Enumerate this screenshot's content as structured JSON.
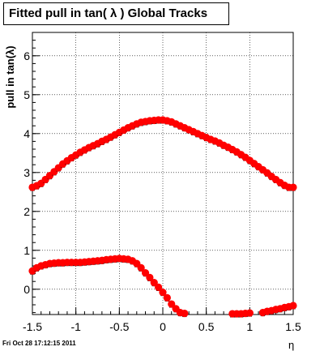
{
  "chart_data": {
    "type": "scatter",
    "title": "Fitted pull in tan( λ )  Global Tracks",
    "xlabel": "η",
    "ylabel": "pull in tan(λ)",
    "xlim": [
      -1.5,
      1.5
    ],
    "ylim": [
      -0.65,
      6.6
    ],
    "xticks": [
      -1.5,
      -1,
      -0.5,
      0,
      0.5,
      1,
      1.5
    ],
    "yticks": [
      0,
      1,
      2,
      3,
      4,
      5,
      6
    ],
    "grid": true,
    "marker_color": "#ff0000",
    "error_color": "#000000",
    "series": [
      {
        "x": [
          -1.5,
          -1.45,
          -1.4,
          -1.35,
          -1.3,
          -1.25,
          -1.2,
          -1.15,
          -1.1,
          -1.05,
          -1.0,
          -0.95,
          -0.9,
          -0.85,
          -0.8,
          -0.75,
          -0.7,
          -0.65,
          -0.6,
          -0.55,
          -0.5,
          -0.45,
          -0.4,
          -0.35,
          -0.3,
          -0.25,
          -0.2,
          -0.15,
          -0.1,
          -0.05,
          0.0,
          0.05,
          0.1,
          0.15,
          0.2,
          0.25,
          0.3,
          0.35,
          0.4,
          0.45,
          0.5,
          0.55,
          0.6,
          0.65,
          0.7,
          0.75,
          0.8,
          0.85,
          0.9,
          0.95,
          1.0,
          1.05,
          1.1,
          1.15,
          1.2,
          1.25,
          1.3,
          1.35,
          1.4,
          1.45,
          1.5
        ],
        "y": [
          2.62,
          2.66,
          2.72,
          2.82,
          2.92,
          3.02,
          3.12,
          3.22,
          3.3,
          3.38,
          3.45,
          3.52,
          3.58,
          3.64,
          3.69,
          3.74,
          3.8,
          3.85,
          3.91,
          3.97,
          4.03,
          4.09,
          4.15,
          4.2,
          4.25,
          4.29,
          4.31,
          4.33,
          4.34,
          4.35,
          4.35,
          4.33,
          4.3,
          4.25,
          4.2,
          4.15,
          4.1,
          4.05,
          4.0,
          3.95,
          3.9,
          3.85,
          3.81,
          3.76,
          3.7,
          3.65,
          3.59,
          3.53,
          3.46,
          3.39,
          3.31,
          3.23,
          3.15,
          3.07,
          2.99,
          2.9,
          2.82,
          2.74,
          2.67,
          2.62,
          2.62
        ]
      },
      {
        "x": [
          -1.5,
          -1.45,
          -1.4,
          -1.35,
          -1.3,
          -1.25,
          -1.2,
          -1.15,
          -1.1,
          -1.05,
          -1.0,
          -0.95,
          -0.9,
          -0.85,
          -0.8,
          -0.75,
          -0.7,
          -0.65,
          -0.6,
          -0.55,
          -0.5,
          -0.45,
          -0.4,
          -0.35,
          -0.3,
          -0.25,
          -0.2,
          -0.15,
          -0.1,
          -0.05,
          0.0,
          0.05,
          0.1,
          0.15,
          0.2,
          0.25,
          0.8,
          0.85,
          0.9,
          0.95,
          1.0,
          1.15,
          1.2,
          1.25,
          1.3,
          1.35,
          1.4,
          1.45,
          1.5
        ],
        "y": [
          0.47,
          0.55,
          0.6,
          0.63,
          0.66,
          0.67,
          0.68,
          0.68,
          0.69,
          0.69,
          0.69,
          0.69,
          0.7,
          0.71,
          0.72,
          0.73,
          0.74,
          0.76,
          0.77,
          0.78,
          0.79,
          0.78,
          0.77,
          0.73,
          0.66,
          0.55,
          0.42,
          0.3,
          0.17,
          0.05,
          -0.08,
          -0.22,
          -0.38,
          -0.5,
          -0.6,
          -0.62,
          -0.63,
          -0.63,
          -0.63,
          -0.62,
          -0.61,
          -0.6,
          -0.57,
          -0.55,
          -0.52,
          -0.5,
          -0.47,
          -0.45,
          -0.42
        ]
      }
    ],
    "timestamp": "Fri Oct 28 17:12:15 2011"
  }
}
